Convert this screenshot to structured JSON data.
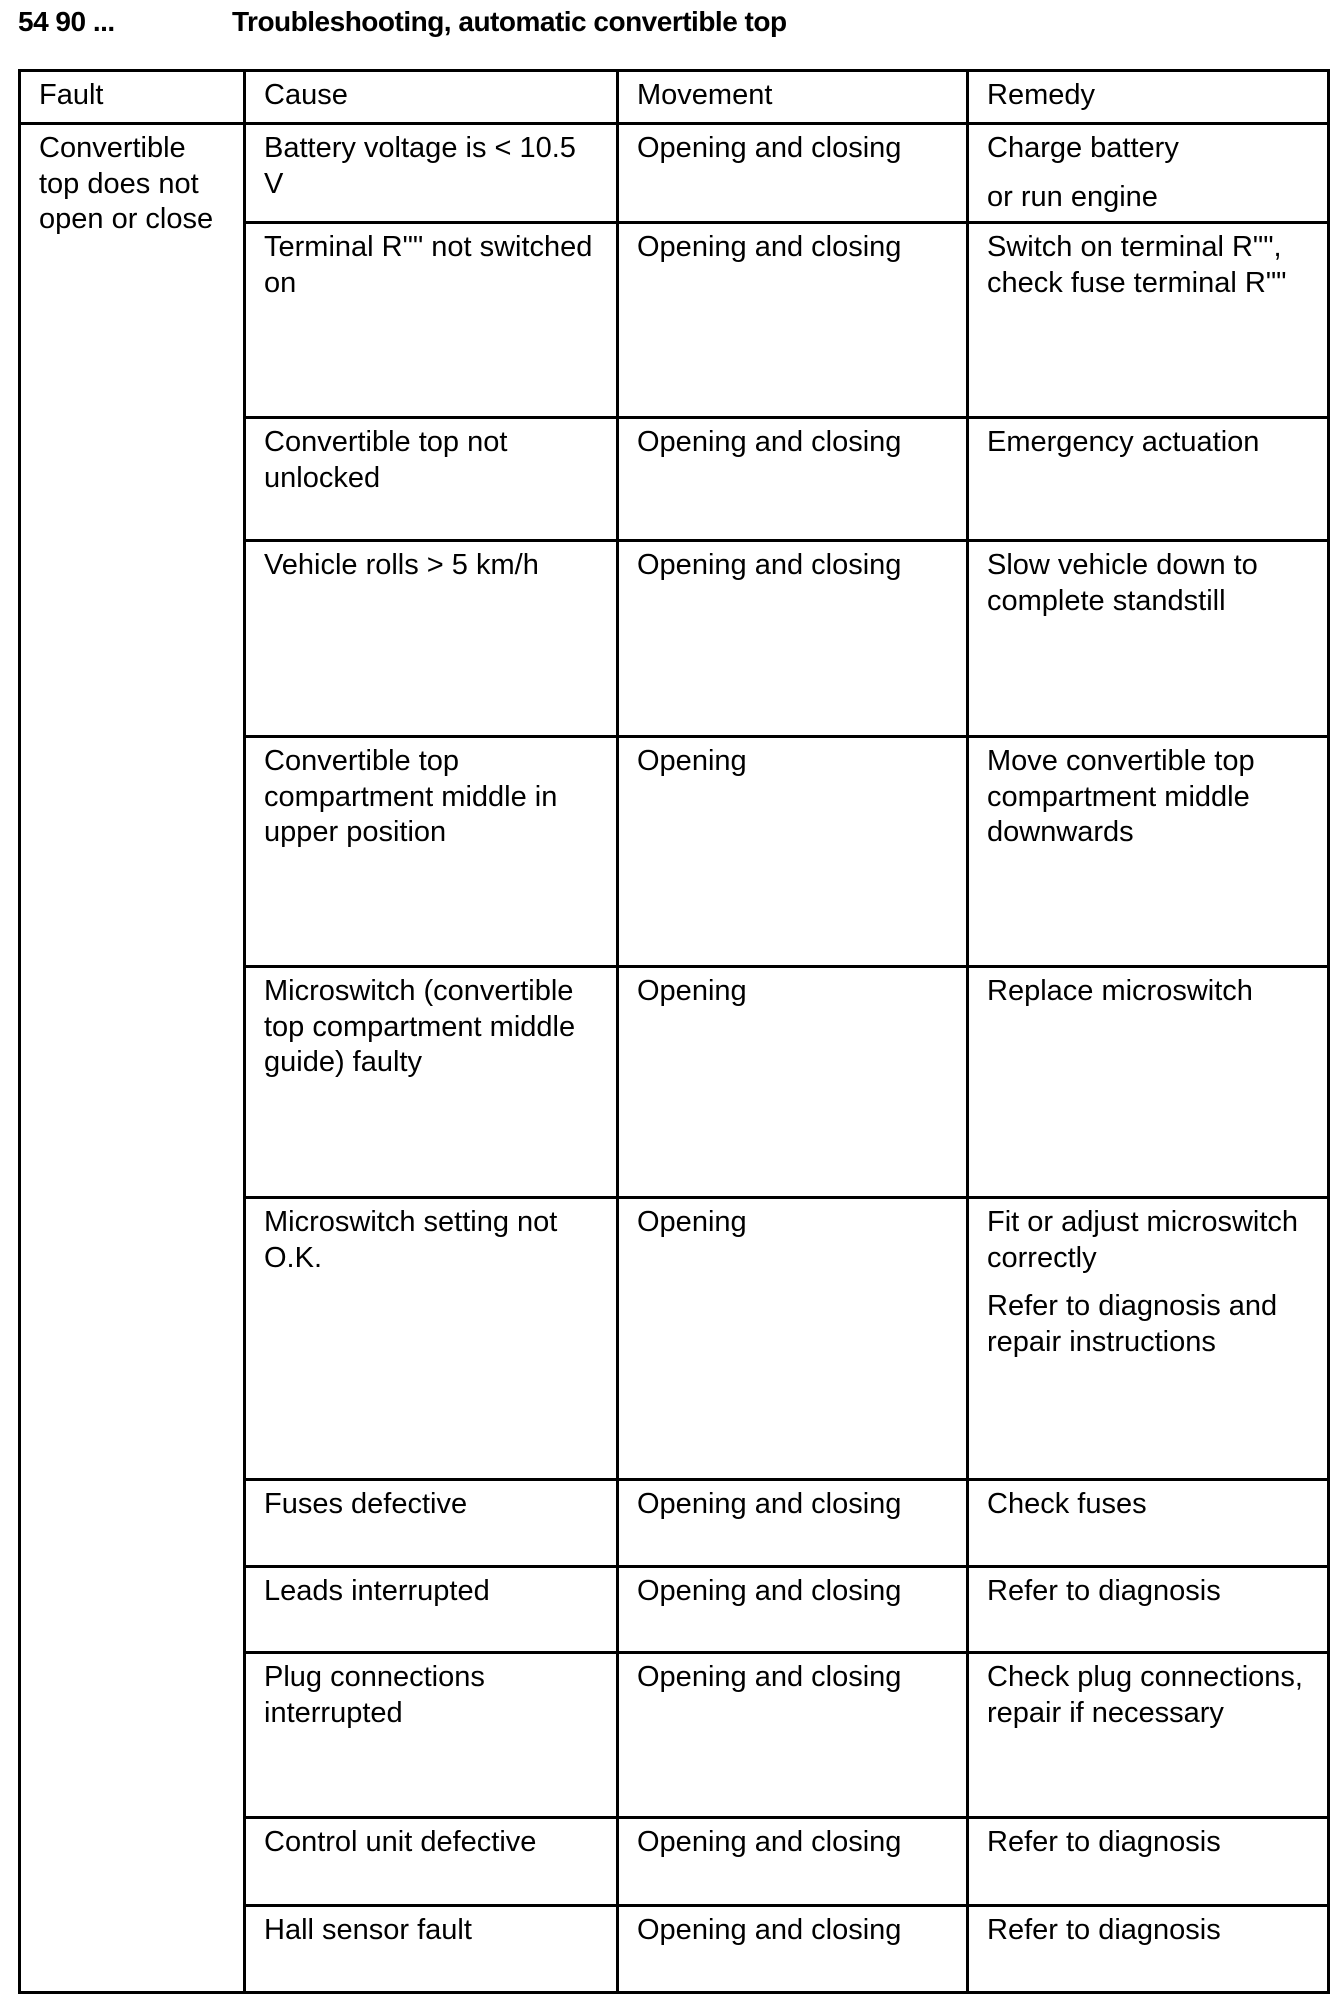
{
  "header": {
    "code": "54 90 ...",
    "title": "Troubleshooting, automatic convertible top"
  },
  "columns": [
    "Fault",
    "Cause",
    "Movement",
    "Remedy"
  ],
  "fault": "Convertible top does not open or close",
  "rows": [
    {
      "cause": "Battery voltage is < 10.5 V",
      "movement": "Opening and closing",
      "remedy": [
        "Charge battery",
        "or run engine"
      ]
    },
    {
      "cause": "Terminal R\"\" not switched on",
      "movement": "Opening and closing",
      "remedy": [
        "Switch on terminal R\"\", check fuse terminal R\"\""
      ]
    },
    {
      "cause": "Convertible top not unlocked",
      "movement": "Opening and closing",
      "remedy": [
        "Emergency actuation"
      ]
    },
    {
      "cause": "Vehicle rolls > 5 km/h",
      "movement": "Opening and closing",
      "remedy": [
        "Slow vehicle down to complete standstill"
      ]
    },
    {
      "cause": "Convertible top compartment middle in upper position",
      "movement": "Opening",
      "remedy": [
        "Move convertible top compartment middle downwards"
      ]
    },
    {
      "cause": "Microswitch (convertible top compartment middle guide) faulty",
      "movement": "Opening",
      "remedy": [
        "Replace microswitch"
      ]
    },
    {
      "cause": "Microswitch setting not O.K.",
      "movement": "Opening",
      "remedy": [
        "Fit or adjust microswitch correctly",
        "Refer to diagnosis and repair instructions"
      ]
    },
    {
      "cause": "Fuses defective",
      "movement": "Opening and closing",
      "remedy": [
        "Check fuses"
      ]
    },
    {
      "cause": "Leads interrupted",
      "movement": "Opening and closing",
      "remedy": [
        "Refer to diagnosis"
      ]
    },
    {
      "cause": "Plug connections interrupted",
      "movement": "Opening and closing",
      "remedy": [
        "Check plug connections, repair if necessary"
      ]
    },
    {
      "cause": "Control unit defective",
      "movement": "Opening and closing",
      "remedy": [
        "Refer to diagnosis"
      ]
    },
    {
      "cause": "Hall sensor fault",
      "movement": "Opening and closing",
      "remedy": [
        "Refer to diagnosis"
      ]
    }
  ]
}
